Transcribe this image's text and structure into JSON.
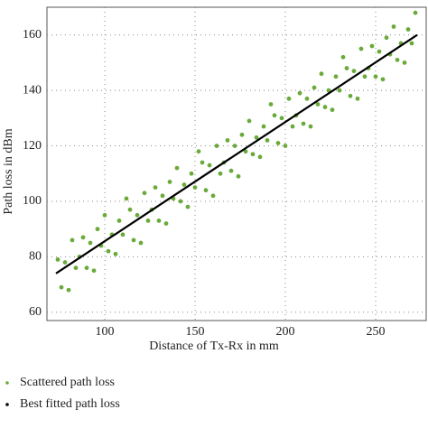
{
  "chart_data": {
    "type": "scatter",
    "xlabel": "Distance of Tx-Rx in mm",
    "ylabel": "Path loss in dBm",
    "xlim": [
      68,
      278
    ],
    "ylim": [
      57,
      170
    ],
    "xticks": [
      100,
      150,
      200,
      250
    ],
    "yticks": [
      60,
      80,
      100,
      120,
      140,
      160
    ],
    "grid": true,
    "series": [
      {
        "name": "Scattered path loss",
        "type": "scatter",
        "color": "#6aaa3a",
        "x": [
          74,
          76,
          78,
          80,
          82,
          84,
          86,
          88,
          90,
          92,
          94,
          96,
          98,
          100,
          102,
          104,
          106,
          108,
          110,
          112,
          114,
          116,
          118,
          120,
          122,
          124,
          126,
          128,
          130,
          132,
          134,
          136,
          138,
          140,
          142,
          144,
          146,
          148,
          150,
          152,
          154,
          156,
          158,
          160,
          162,
          164,
          166,
          168,
          170,
          172,
          174,
          176,
          178,
          180,
          182,
          184,
          186,
          188,
          190,
          192,
          194,
          196,
          198,
          200,
          202,
          204,
          206,
          208,
          210,
          212,
          214,
          216,
          218,
          220,
          222,
          224,
          226,
          228,
          230,
          232,
          234,
          236,
          238,
          240,
          242,
          244,
          246,
          248,
          250,
          252,
          254,
          256,
          258,
          260,
          262,
          264,
          266,
          268,
          270,
          272
        ],
        "values": [
          79,
          69,
          78,
          68,
          86,
          76,
          80,
          87,
          76,
          85,
          75,
          90,
          84,
          95,
          82,
          88,
          81,
          93,
          88,
          101,
          97,
          86,
          95,
          85,
          103,
          93,
          97,
          105,
          93,
          102,
          92,
          107,
          101,
          112,
          100,
          106,
          98,
          110,
          105,
          118,
          114,
          104,
          113,
          102,
          120,
          110,
          114,
          122,
          111,
          120,
          109,
          124,
          118,
          129,
          117,
          123,
          116,
          127,
          122,
          135,
          131,
          121,
          130,
          120,
          137,
          127,
          131,
          139,
          128,
          137,
          127,
          141,
          135,
          146,
          134,
          140,
          133,
          145,
          140,
          152,
          148,
          138,
          147,
          137,
          155,
          145,
          148,
          156,
          145,
          154,
          144,
          159,
          153,
          163,
          151,
          157,
          150,
          162,
          157,
          168
        ]
      },
      {
        "name": "Best fitted path loss",
        "type": "line",
        "color": "#000000",
        "x": [
          73,
          273
        ],
        "values": [
          74,
          160
        ]
      }
    ]
  }
}
